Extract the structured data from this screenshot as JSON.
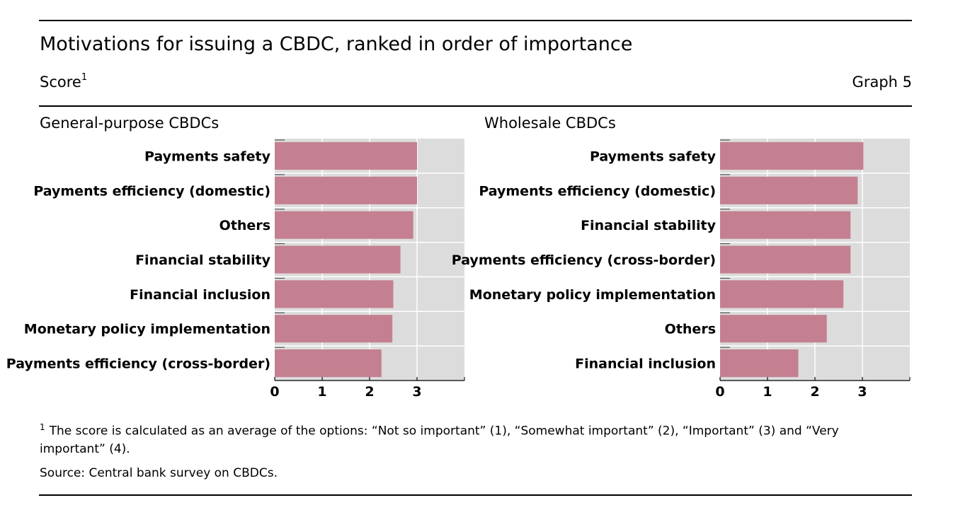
{
  "title": "Motivations for issuing a CBDC, ranked in order of importance",
  "unit_label": "Score",
  "unit_footnote_marker": "1",
  "graph_number": "Graph 5",
  "footnote_marker": "1",
  "footnote": "The score is calculated as an average of the options: “Not so important” (1), “Somewhat important” (2), “Important” (3) and “Very important” (4).",
  "source": "Source: Central bank survey on CBDCs.",
  "colors": {
    "bar": "#c48090",
    "plot_bg": "#dcdcdc",
    "gridline": "#ffffff"
  },
  "chart_data": [
    {
      "type": "bar",
      "orientation": "horizontal",
      "title": "General-purpose CBDCs",
      "categories": [
        "Payments safety",
        "Payments efficiency (domestic)",
        "Others",
        "Financial stability",
        "Financial inclusion",
        "Monetary policy implementation",
        "Payments efficiency (cross-border)"
      ],
      "values": [
        3.0,
        3.0,
        2.92,
        2.65,
        2.5,
        2.48,
        2.25
      ],
      "xlim": [
        0,
        4
      ],
      "xticks": [
        "0",
        "1",
        "2",
        "3"
      ],
      "xlabel": "",
      "ylabel": "",
      "grid": true
    },
    {
      "type": "bar",
      "orientation": "horizontal",
      "title": "Wholesale CBDCs",
      "categories": [
        "Payments safety",
        "Payments efficiency (domestic)",
        "Financial stability",
        "Payments efficiency (cross-border)",
        "Monetary policy implementation",
        "Others",
        "Financial inclusion"
      ],
      "values": [
        3.02,
        2.9,
        2.75,
        2.75,
        2.6,
        2.25,
        1.65
      ],
      "xlim": [
        0,
        4
      ],
      "xticks": [
        "0",
        "1",
        "2",
        "3"
      ],
      "xlabel": "",
      "ylabel": "",
      "grid": true
    }
  ]
}
